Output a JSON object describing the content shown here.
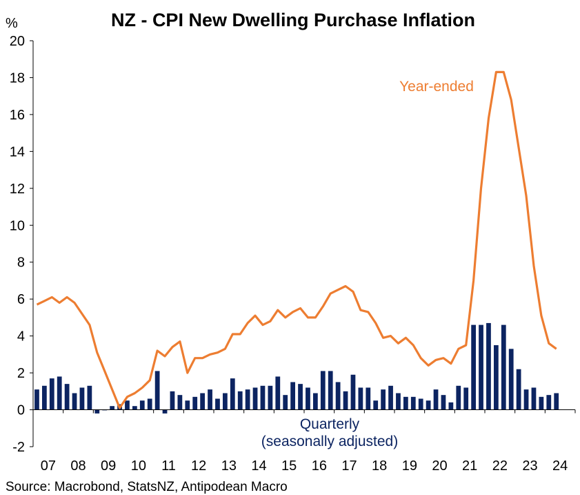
{
  "chart_data": {
    "type": "bar+line",
    "title": "NZ - CPI New Dwelling Purchase Inflation",
    "y_unit": "%",
    "ylim": [
      -2,
      20
    ],
    "yticks": [
      -2,
      0,
      2,
      4,
      6,
      8,
      10,
      12,
      14,
      16,
      18,
      20
    ],
    "xlim": [
      2007.0,
      2025.0
    ],
    "xtick_labels": [
      "07",
      "08",
      "09",
      "10",
      "11",
      "12",
      "13",
      "14",
      "15",
      "16",
      "17",
      "18",
      "19",
      "20",
      "21",
      "22",
      "23",
      "24"
    ],
    "grid": false,
    "source": "Source: Macrobond, StatsNZ, Antipodean Macro",
    "colors": {
      "line": "#ED7D31",
      "bars": "#0C2461",
      "axis": "#000000"
    },
    "series": [
      {
        "name": "Year-ended",
        "type": "line",
        "start": 2007.0,
        "step": 0.25,
        "values": [
          5.7,
          5.9,
          6.1,
          5.8,
          6.1,
          5.8,
          5.2,
          4.6,
          3.1,
          2.1,
          1.1,
          0.1,
          0.7,
          0.9,
          1.2,
          1.6,
          3.2,
          2.9,
          3.4,
          3.7,
          2.0,
          2.8,
          2.8,
          3.0,
          3.1,
          3.3,
          4.1,
          4.1,
          4.7,
          5.1,
          4.6,
          4.8,
          5.4,
          5.0,
          5.3,
          5.5,
          5.0,
          5.0,
          5.6,
          6.3,
          6.5,
          6.7,
          6.4,
          5.4,
          5.3,
          4.7,
          3.9,
          4.0,
          3.6,
          3.9,
          3.5,
          2.8,
          2.4,
          2.7,
          2.8,
          2.5,
          3.3,
          3.5,
          7.0,
          12.0,
          15.8,
          18.3,
          18.3,
          16.8,
          14.2,
          11.6,
          7.8,
          5.1,
          3.6,
          3.3
        ]
      },
      {
        "name": "Quarterly\n(seasonally adjusted)",
        "type": "bar",
        "start": 2007.0,
        "step": 0.25,
        "values": [
          1.1,
          1.3,
          1.7,
          1.8,
          1.4,
          0.9,
          1.2,
          1.3,
          -0.2,
          0.0,
          0.2,
          0.3,
          0.5,
          0.2,
          0.5,
          0.6,
          2.1,
          -0.2,
          1.0,
          0.8,
          0.5,
          0.7,
          0.9,
          1.1,
          0.6,
          0.9,
          1.7,
          1.0,
          1.1,
          1.2,
          1.3,
          1.3,
          1.8,
          0.8,
          1.5,
          1.4,
          1.2,
          0.9,
          2.1,
          2.1,
          1.5,
          1.0,
          1.9,
          1.2,
          1.2,
          0.5,
          1.1,
          1.3,
          0.9,
          0.7,
          0.7,
          0.6,
          0.5,
          1.1,
          0.8,
          0.4,
          1.3,
          1.2,
          4.6,
          4.6,
          4.7,
          3.5,
          4.6,
          3.3,
          2.2,
          1.1,
          1.2,
          0.7,
          0.8,
          0.9
        ]
      }
    ]
  }
}
